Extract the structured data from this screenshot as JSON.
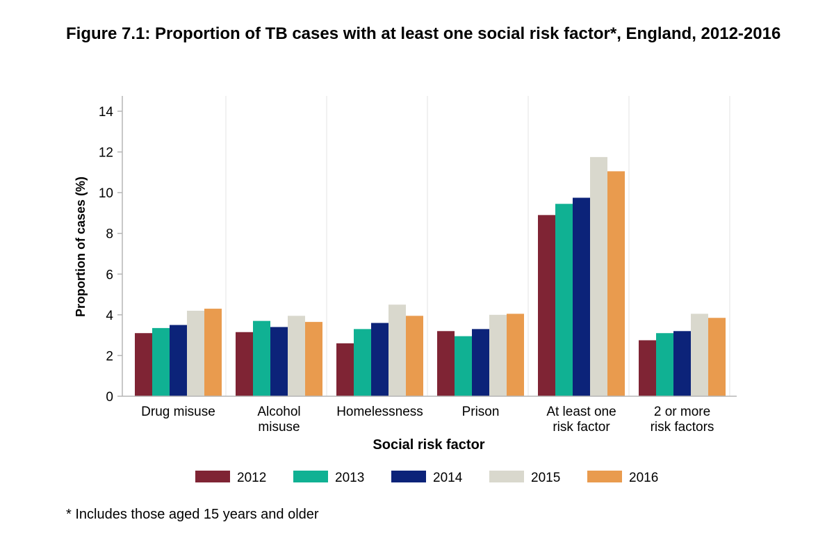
{
  "title": "Figure 7.1: Proportion of TB cases with at least one social risk factor*, England, 2012-2016",
  "footnote": "* Includes those aged 15 years and older",
  "chart_data": {
    "type": "bar",
    "title": "Figure 7.1: Proportion of TB cases with at least one social risk factor*, England, 2012-2016",
    "xlabel": "Social risk factor",
    "ylabel": "Proportion of cases (%)",
    "ylim": [
      0,
      14
    ],
    "yticks": [
      0,
      2,
      4,
      6,
      8,
      10,
      12,
      14
    ],
    "grid": false,
    "legend": "bottom",
    "categories": [
      [
        "Drug misuse"
      ],
      [
        "Alcohol",
        "misuse"
      ],
      [
        "Homelessness"
      ],
      [
        "Prison"
      ],
      [
        "At least one",
        "risk factor"
      ],
      [
        "2 or more",
        "risk factors"
      ]
    ],
    "series": [
      {
        "name": "2012",
        "color": "#7f2434",
        "values": [
          3.1,
          3.15,
          2.6,
          3.2,
          8.9,
          2.75
        ]
      },
      {
        "name": "2013",
        "color": "#10b193",
        "values": [
          3.35,
          3.7,
          3.3,
          2.95,
          9.45,
          3.1
        ]
      },
      {
        "name": "2014",
        "color": "#0c2379",
        "values": [
          3.5,
          3.4,
          3.6,
          3.3,
          9.75,
          3.2
        ]
      },
      {
        "name": "2015",
        "color": "#d9d8cd",
        "values": [
          4.2,
          3.95,
          4.5,
          4.0,
          11.75,
          4.05
        ]
      },
      {
        "name": "2016",
        "color": "#e99b4e",
        "values": [
          4.3,
          3.65,
          3.95,
          4.05,
          11.05,
          3.85
        ]
      }
    ]
  }
}
